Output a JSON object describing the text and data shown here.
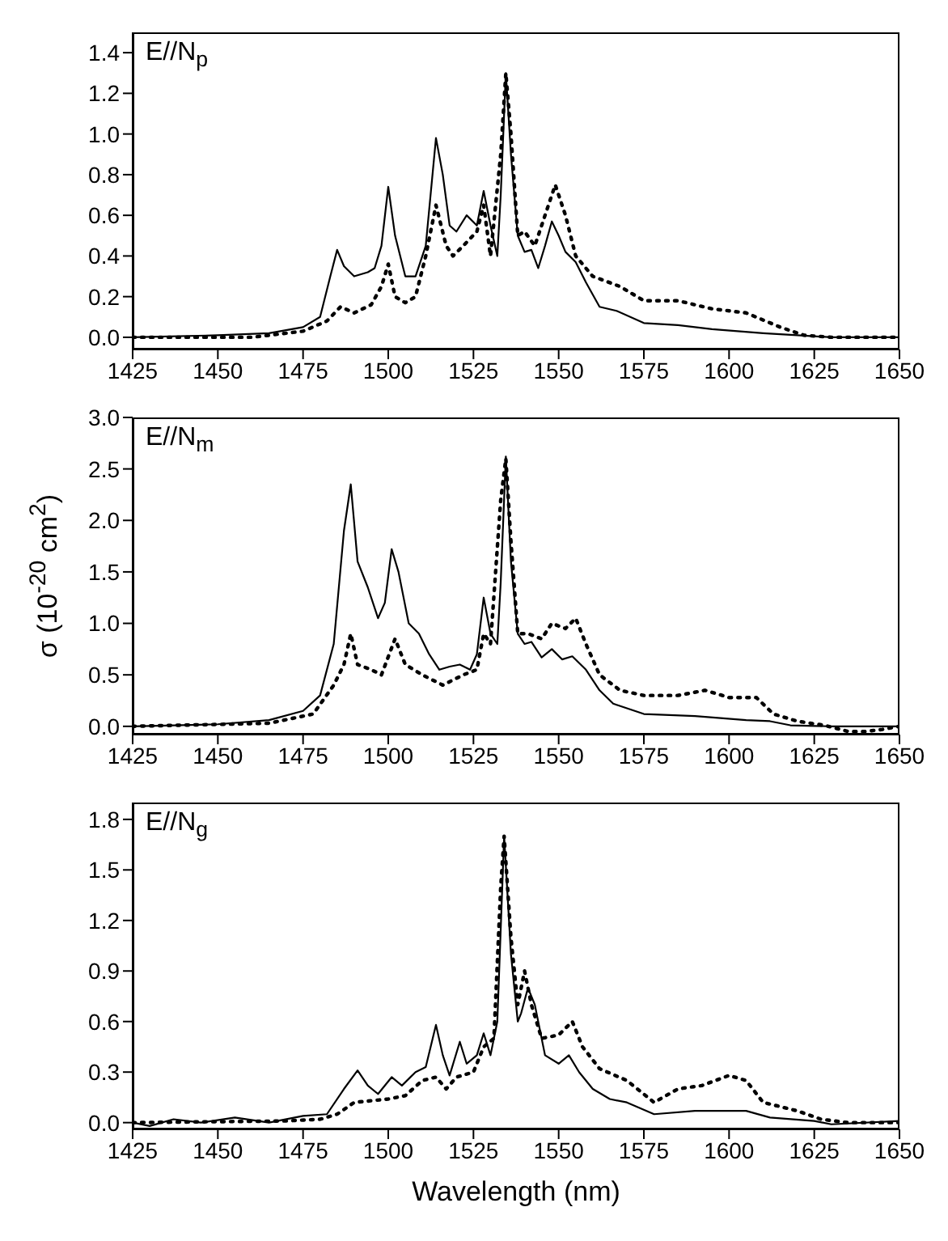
{
  "chart_data": [
    {
      "type": "line",
      "title": "E//N$_{p}$",
      "xlim": [
        1425,
        1650
      ],
      "xticks": [
        1425,
        1450,
        1475,
        1500,
        1525,
        1550,
        1575,
        1600,
        1625,
        1650
      ],
      "ylim": [
        -0.06,
        1.5
      ],
      "yticks": [
        {
          "value": 0,
          "label": "0.0"
        },
        {
          "value": 0.2,
          "label": "0.2"
        },
        {
          "value": 0.4,
          "label": "0.4"
        },
        {
          "value": 0.6,
          "label": "0.6"
        },
        {
          "value": 0.8,
          "label": "0.8"
        },
        {
          "value": 1,
          "label": "1.0"
        },
        {
          "value": 1.2,
          "label": "1.2"
        },
        {
          "value": 1.4,
          "label": "1.4"
        }
      ],
      "series": [
        {
          "color": "#000000",
          "line_style": "solid",
          "x": [
            1425,
            1450,
            1465,
            1475,
            1480,
            1483,
            1485,
            1487,
            1490,
            1494,
            1496,
            1498,
            1500,
            1502,
            1505,
            1508,
            1511,
            1514,
            1516,
            1518,
            1520,
            1523,
            1526,
            1528,
            1530,
            1532,
            1533,
            1534.5,
            1536,
            1538,
            1540,
            1542,
            1544,
            1546,
            1548,
            1550,
            1552,
            1555,
            1558,
            1562,
            1567,
            1575,
            1585,
            1595,
            1610,
            1620,
            1630,
            1650
          ],
          "values": [
            0,
            0.01,
            0.02,
            0.05,
            0.1,
            0.3,
            0.43,
            0.35,
            0.3,
            0.32,
            0.34,
            0.45,
            0.74,
            0.5,
            0.3,
            0.3,
            0.45,
            0.98,
            0.8,
            0.55,
            0.52,
            0.6,
            0.55,
            0.72,
            0.55,
            0.4,
            0.7,
            1.3,
            0.9,
            0.5,
            0.42,
            0.43,
            0.34,
            0.45,
            0.57,
            0.5,
            0.42,
            0.37,
            0.27,
            0.15,
            0.13,
            0.07,
            0.06,
            0.04,
            0.02,
            0.01,
            0,
            0
          ]
        },
        {
          "color": "#000000",
          "line_style": "dotted",
          "x": [
            1425,
            1460,
            1475,
            1482,
            1486,
            1490,
            1495,
            1498,
            1500,
            1502,
            1505,
            1508,
            1511,
            1514,
            1517,
            1519,
            1522,
            1526,
            1528,
            1530,
            1533,
            1534.5,
            1536,
            1538,
            1540,
            1543,
            1546,
            1549,
            1552,
            1555,
            1560,
            1568,
            1575,
            1585,
            1595,
            1605,
            1615,
            1622,
            1630,
            1650
          ],
          "values": [
            0,
            0,
            0.03,
            0.08,
            0.15,
            0.12,
            0.16,
            0.25,
            0.36,
            0.2,
            0.17,
            0.2,
            0.4,
            0.65,
            0.45,
            0.4,
            0.45,
            0.52,
            0.65,
            0.4,
            0.9,
            1.3,
            1.0,
            0.5,
            0.52,
            0.45,
            0.6,
            0.75,
            0.6,
            0.4,
            0.3,
            0.25,
            0.18,
            0.18,
            0.14,
            0.12,
            0.05,
            0.01,
            0,
            0
          ]
        }
      ]
    },
    {
      "type": "line",
      "title": "E//N$_{m}$",
      "ylabel": "σ (10$^{-20}$ cm$^{2}$)",
      "xlim": [
        1425,
        1650
      ],
      "xticks": [
        1425,
        1450,
        1475,
        1500,
        1525,
        1550,
        1575,
        1600,
        1625,
        1650
      ],
      "ylim": [
        -0.08,
        3.0
      ],
      "yticks": [
        {
          "value": 0,
          "label": "0.0"
        },
        {
          "value": 0.5,
          "label": "0.5"
        },
        {
          "value": 1,
          "label": "1.0"
        },
        {
          "value": 1.5,
          "label": "1.5"
        },
        {
          "value": 2,
          "label": "2.0"
        },
        {
          "value": 2.5,
          "label": "2.5"
        },
        {
          "value": 3,
          "label": "3.0"
        }
      ],
      "series": [
        {
          "color": "#000000",
          "line_style": "solid",
          "x": [
            1425,
            1450,
            1465,
            1475,
            1480,
            1484,
            1487,
            1489,
            1491,
            1494,
            1497,
            1499,
            1501,
            1503,
            1506,
            1509,
            1512,
            1515,
            1518,
            1521,
            1524,
            1526,
            1528,
            1530,
            1532,
            1533,
            1534.5,
            1536,
            1538,
            1540,
            1542,
            1545,
            1548,
            1551,
            1554,
            1558,
            1562,
            1566,
            1575,
            1590,
            1605,
            1612,
            1618,
            1630,
            1650
          ],
          "values": [
            0,
            0.02,
            0.06,
            0.15,
            0.3,
            0.8,
            1.9,
            2.35,
            1.6,
            1.35,
            1.05,
            1.2,
            1.72,
            1.5,
            1.0,
            0.9,
            0.7,
            0.55,
            0.58,
            0.6,
            0.55,
            0.7,
            1.25,
            0.9,
            0.8,
            1.4,
            2.62,
            1.6,
            0.9,
            0.8,
            0.82,
            0.67,
            0.75,
            0.65,
            0.68,
            0.55,
            0.35,
            0.22,
            0.12,
            0.1,
            0.06,
            0.05,
            0.01,
            0,
            0
          ]
        },
        {
          "color": "#000000",
          "line_style": "dotted",
          "x": [
            1425,
            1465,
            1478,
            1484,
            1487,
            1489,
            1491,
            1495,
            1498,
            1502,
            1505,
            1510,
            1516,
            1522,
            1526,
            1528,
            1530,
            1533,
            1534.5,
            1536,
            1538,
            1541,
            1545,
            1548,
            1552,
            1555,
            1558,
            1562,
            1568,
            1575,
            1585,
            1593,
            1600,
            1608,
            1613,
            1620,
            1628,
            1635,
            1640,
            1645,
            1650
          ],
          "values": [
            0,
            0.03,
            0.12,
            0.4,
            0.6,
            0.9,
            0.6,
            0.55,
            0.5,
            0.85,
            0.6,
            0.5,
            0.4,
            0.5,
            0.55,
            0.9,
            0.8,
            2.2,
            2.6,
            1.8,
            0.9,
            0.9,
            0.85,
            1.0,
            0.95,
            1.05,
            0.8,
            0.5,
            0.35,
            0.3,
            0.3,
            0.35,
            0.28,
            0.28,
            0.12,
            0.05,
            0.01,
            -0.05,
            -0.05,
            -0.03,
            0
          ]
        }
      ]
    },
    {
      "type": "line",
      "title": "E//N$_{g}$",
      "xlabel": "Wavelength (nm)",
      "xlim": [
        1425,
        1650
      ],
      "xticks": [
        1425,
        1450,
        1475,
        1500,
        1525,
        1550,
        1575,
        1600,
        1625,
        1650
      ],
      "ylim": [
        -0.04,
        1.9
      ],
      "yticks": [
        {
          "value": 0,
          "label": "0.0"
        },
        {
          "value": 0.3,
          "label": "0.3"
        },
        {
          "value": 0.6,
          "label": "0.6"
        },
        {
          "value": 0.9,
          "label": "0.9"
        },
        {
          "value": 1.2,
          "label": "1.2"
        },
        {
          "value": 1.5,
          "label": "1.5"
        },
        {
          "value": 1.8,
          "label": "1.8"
        }
      ],
      "series": [
        {
          "color": "#000000",
          "line_style": "solid",
          "x": [
            1425,
            1430,
            1437,
            1445,
            1455,
            1465,
            1475,
            1482,
            1487,
            1491,
            1494,
            1497,
            1501,
            1504,
            1508,
            1511,
            1514,
            1516,
            1518,
            1521,
            1523,
            1526,
            1528,
            1530,
            1532,
            1534,
            1536,
            1538,
            1539,
            1541,
            1543,
            1546,
            1550,
            1553,
            1556,
            1560,
            1565,
            1570,
            1578,
            1590,
            1605,
            1612,
            1625,
            1630,
            1650
          ],
          "values": [
            0,
            -0.02,
            0.02,
            0,
            0.03,
            0,
            0.04,
            0.05,
            0.2,
            0.31,
            0.22,
            0.17,
            0.27,
            0.22,
            0.3,
            0.33,
            0.58,
            0.4,
            0.28,
            0.48,
            0.35,
            0.4,
            0.53,
            0.4,
            0.6,
            1.7,
            1.0,
            0.6,
            0.65,
            0.8,
            0.7,
            0.4,
            0.35,
            0.4,
            0.3,
            0.2,
            0.14,
            0.12,
            0.05,
            0.07,
            0.07,
            0.03,
            0.01,
            -0.01,
            0.01
          ]
        },
        {
          "color": "#000000",
          "line_style": "dotted",
          "x": [
            1425,
            1470,
            1480,
            1485,
            1490,
            1495,
            1500,
            1505,
            1510,
            1514,
            1517,
            1520,
            1525,
            1528,
            1531,
            1533,
            1534,
            1536,
            1538,
            1540,
            1542,
            1545,
            1550,
            1554,
            1557,
            1562,
            1570,
            1578,
            1585,
            1592,
            1600,
            1605,
            1610,
            1620,
            1627,
            1635,
            1650
          ],
          "values": [
            0,
            0.01,
            0.02,
            0.05,
            0.12,
            0.13,
            0.14,
            0.16,
            0.25,
            0.27,
            0.2,
            0.27,
            0.3,
            0.45,
            0.5,
            1.4,
            1.7,
            1.1,
            0.7,
            0.9,
            0.7,
            0.5,
            0.52,
            0.6,
            0.45,
            0.32,
            0.25,
            0.12,
            0.2,
            0.22,
            0.28,
            0.25,
            0.12,
            0.07,
            0.02,
            0,
            0
          ]
        }
      ]
    }
  ]
}
